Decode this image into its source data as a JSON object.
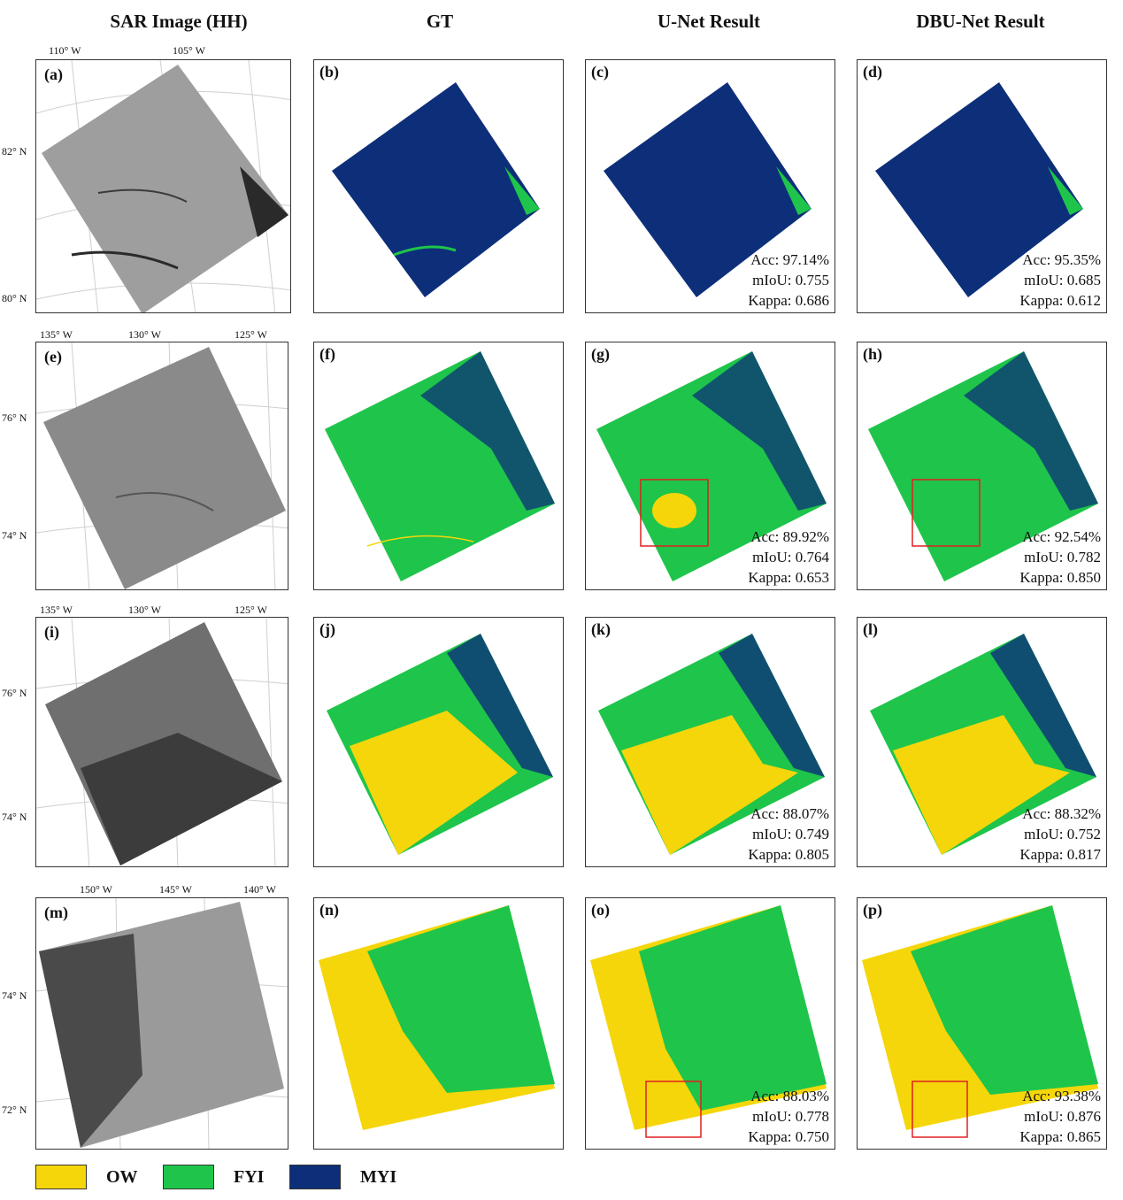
{
  "columns": {
    "sar": "SAR Image (HH)",
    "gt": "GT",
    "unet": "U-Net Result",
    "dbunet": "DBU-Net Result"
  },
  "colors": {
    "ow": "#f5d60a",
    "fyi": "#1ec54a",
    "myi": "#0d2f7a",
    "highlight": "#e02020"
  },
  "rows": [
    {
      "sar": {
        "tag": "(a)",
        "lon": [
          "110° W",
          "105° W"
        ],
        "lat": [
          "82° N",
          "80° N"
        ]
      },
      "gt": {
        "tag": "(b)"
      },
      "unet": {
        "tag": "(c)",
        "acc": "Acc: 97.14%",
        "miou": "mIoU: 0.755",
        "kappa": "Kappa: 0.686"
      },
      "dbunet": {
        "tag": "(d)",
        "acc": "Acc: 95.35%",
        "miou": "mIoU: 0.685",
        "kappa": "Kappa: 0.612"
      }
    },
    {
      "sar": {
        "tag": "(e)",
        "lon": [
          "135° W",
          "130° W",
          "125° W"
        ],
        "lat": [
          "76° N",
          "74° N"
        ]
      },
      "gt": {
        "tag": "(f)"
      },
      "unet": {
        "tag": "(g)",
        "acc": "Acc: 89.92%",
        "miou": "mIoU: 0.764",
        "kappa": "Kappa: 0.653"
      },
      "dbunet": {
        "tag": "(h)",
        "acc": "Acc: 92.54%",
        "miou": "mIoU: 0.782",
        "kappa": "Kappa: 0.850"
      }
    },
    {
      "sar": {
        "tag": "(i)",
        "lon": [
          "135° W",
          "130° W",
          "125° W"
        ],
        "lat": [
          "76° N",
          "74° N"
        ]
      },
      "gt": {
        "tag": "(j)"
      },
      "unet": {
        "tag": "(k)",
        "acc": "Acc: 88.07%",
        "miou": "mIoU: 0.749",
        "kappa": "Kappa: 0.805"
      },
      "dbunet": {
        "tag": "(l)",
        "acc": "Acc: 88.32%",
        "miou": "mIoU: 0.752",
        "kappa": "Kappa: 0.817"
      }
    },
    {
      "sar": {
        "tag": "(m)",
        "lon": [
          "150° W",
          "145° W",
          "140° W"
        ],
        "lat": [
          "74° N",
          "72° N"
        ]
      },
      "gt": {
        "tag": "(n)"
      },
      "unet": {
        "tag": "(o)",
        "acc": "Acc: 88.03%",
        "miou": "mIoU: 0.778",
        "kappa": "Kappa: 0.750"
      },
      "dbunet": {
        "tag": "(p)",
        "acc": "Acc: 93.38%",
        "miou": "mIoU: 0.876",
        "kappa": "Kappa: 0.865"
      }
    }
  ],
  "legend": [
    {
      "key": "ow",
      "label": "OW"
    },
    {
      "key": "fyi",
      "label": "FYI"
    },
    {
      "key": "myi",
      "label": "MYI"
    }
  ]
}
